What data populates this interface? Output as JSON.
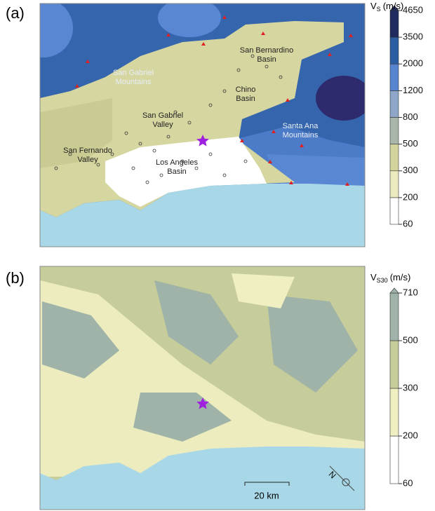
{
  "panels": [
    {
      "label": "(a)",
      "places": [
        {
          "lines": [
            "San Gabriel",
            "Mountains"
          ]
        },
        {
          "lines": [
            "San Bernardino",
            "Basin"
          ]
        },
        {
          "lines": [
            "Chino",
            "Basin"
          ]
        },
        {
          "lines": [
            "San Gabriel",
            "Valley"
          ]
        },
        {
          "lines": [
            "Santa Ana",
            "Mountains"
          ]
        },
        {
          "lines": [
            "San Fernando",
            "Valley"
          ]
        },
        {
          "lines": [
            "Los Angeles",
            "Basin"
          ]
        }
      ],
      "colorbar": {
        "title": {
          "main": "V",
          "sub": "S",
          "unit": "(m/s)"
        },
        "ticks": [
          60,
          200,
          300,
          500,
          800,
          1200,
          2000,
          3500,
          4650
        ],
        "colors": [
          "#ffffff",
          "#ecebbf",
          "#d2d39d",
          "#a9b7ab",
          "#8ea7c9",
          "#5684cf",
          "#2b5da3",
          "#1f2a5f"
        ]
      }
    },
    {
      "label": "(b)",
      "scale_bar": "20 km",
      "north": "N",
      "colorbar": {
        "title": {
          "main": "V",
          "sub": "S30",
          "unit": "(m/s)"
        },
        "ticks": [
          60,
          200,
          300,
          500,
          710
        ],
        "colors": [
          "#ffffff",
          "#efefc2",
          "#c7cd9a",
          "#9fb3a8"
        ]
      }
    }
  ]
}
